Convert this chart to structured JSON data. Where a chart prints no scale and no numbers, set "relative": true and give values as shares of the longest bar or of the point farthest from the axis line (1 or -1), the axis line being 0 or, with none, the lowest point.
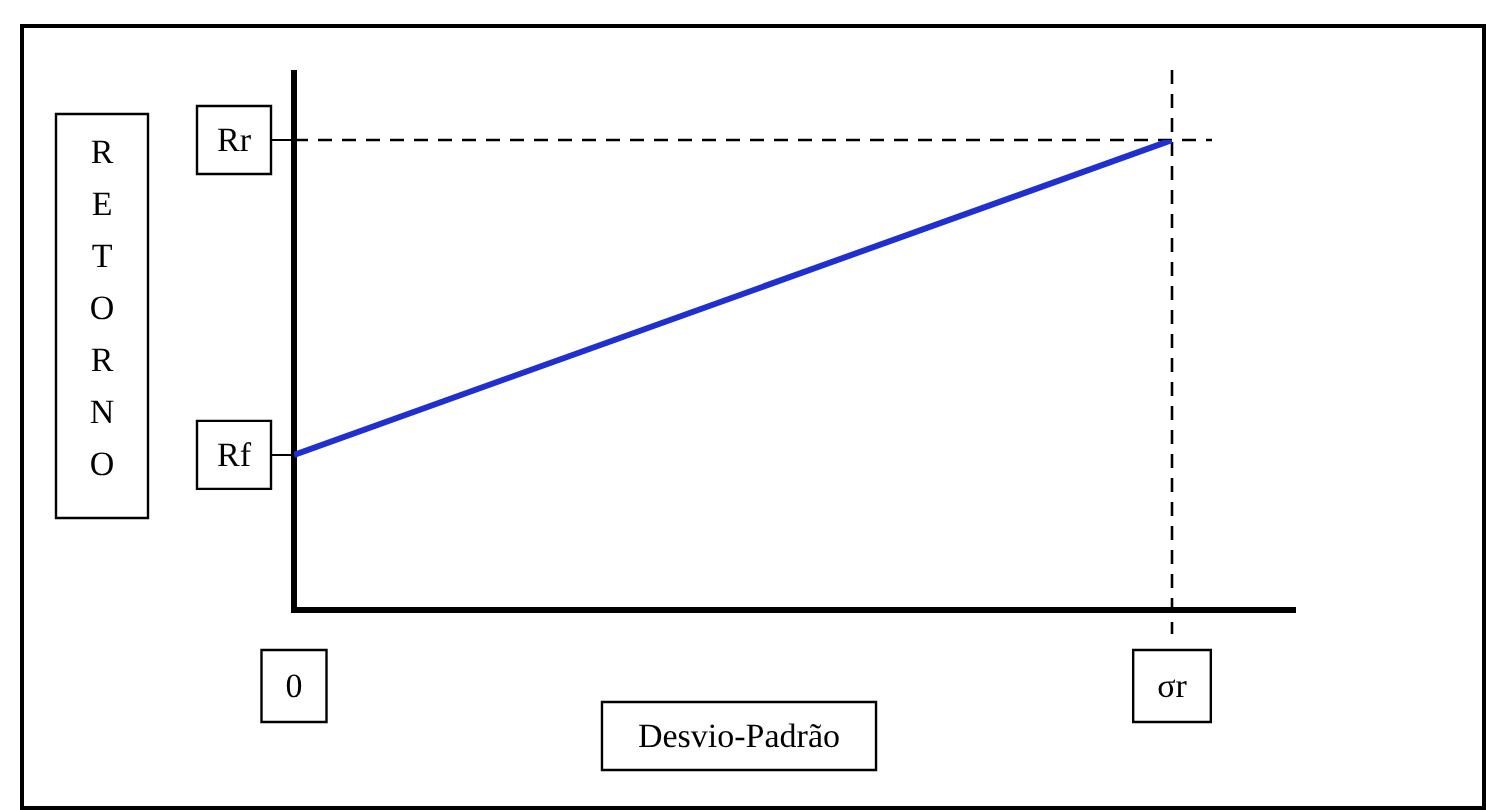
{
  "chart_data": {
    "type": "line",
    "relative": true,
    "xlabel": "Desvio-Padrão",
    "ylabel": "RETORNO",
    "categories": [
      "0",
      "σr"
    ],
    "series": [
      {
        "color": "#1f2fd0",
        "values": [
          0.33,
          1
        ]
      }
    ],
    "ref_lines": [
      {
        "axis": "y",
        "value": 1,
        "line_style": "dashed",
        "color": "#000000"
      },
      {
        "axis": "x",
        "value": "σr",
        "line_style": "dashed",
        "color": "#000000"
      }
    ],
    "annotations": [
      {
        "text": "Rf",
        "x": "0",
        "y": 0.33
      },
      {
        "text": "Rr",
        "x": "0",
        "y": 1
      }
    ],
    "legend": false,
    "line_style": "solid"
  }
}
